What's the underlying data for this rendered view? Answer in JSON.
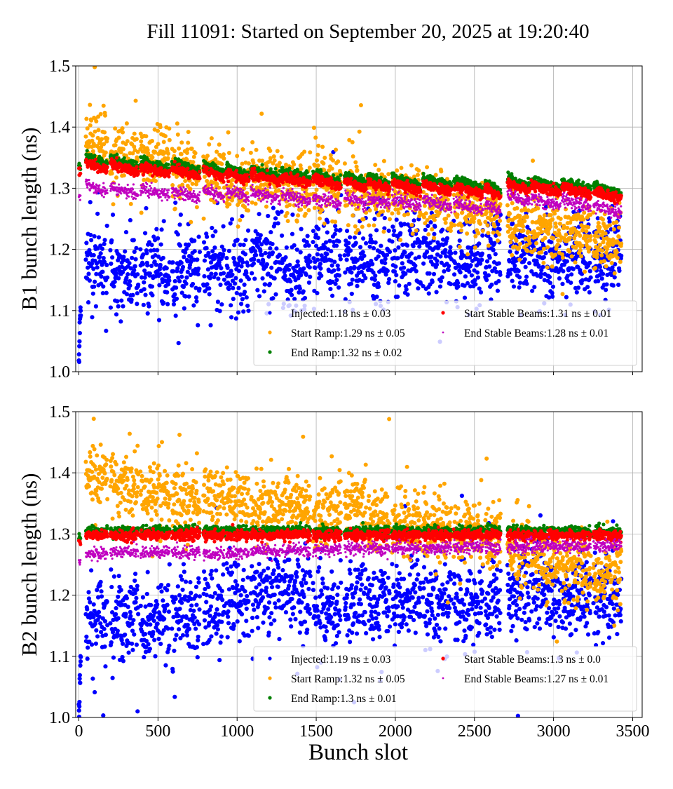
{
  "title": "Fill 11091: Started on September 20, 2025 at 19:20:40",
  "xlabel": "Bunch slot",
  "xticks": [
    0,
    500,
    1000,
    1500,
    2000,
    2500,
    3000,
    3500
  ],
  "yticks": [
    1.0,
    1.1,
    1.2,
    1.3,
    1.4,
    1.5
  ],
  "chart_data": [
    {
      "type": "scatter",
      "ylabel": "B1 bunch length (ns)",
      "xlim": [
        -20,
        3560
      ],
      "ylim": [
        1.0,
        1.5
      ],
      "grid": true,
      "legend_position": "lower-right",
      "trains": [
        [
          44,
          181
        ],
        [
          199,
          376
        ],
        [
          389,
          574
        ],
        [
          588,
          764
        ],
        [
          787,
          919
        ],
        [
          932,
          1074
        ],
        [
          1087,
          1273
        ],
        [
          1281,
          1463
        ],
        [
          1480,
          1657
        ],
        [
          1679,
          1816
        ],
        [
          1825,
          1966
        ],
        [
          1980,
          2161
        ],
        [
          2174,
          2355
        ],
        [
          2369,
          2554
        ],
        [
          2567,
          2665
        ],
        [
          2709,
          2850
        ],
        [
          2859,
          3045
        ],
        [
          3053,
          3235
        ],
        [
          3252,
          3429
        ]
      ],
      "pilot": {
        "slots": [
          0,
          12
        ],
        "injected_values": [
          1.02,
          1.11
        ]
      },
      "series": [
        {
          "name": "Injected",
          "legend": "Injected:1.18 ns ± 0.03",
          "color": "#0000ff",
          "spread": 0.035,
          "train_means": [
            1.18,
            1.165,
            1.165,
            1.165,
            1.175,
            1.165,
            1.19,
            1.16,
            1.19,
            1.18,
            1.18,
            1.19,
            1.19,
            1.18,
            1.185,
            1.19,
            1.18,
            1.185,
            1.19
          ]
        },
        {
          "name": "Start Ramp",
          "legend": "Start Ramp:1.29 ns ± 0.05",
          "color": "#ffa500",
          "spread": 0.025,
          "train_means": [
            1.38,
            1.355,
            1.35,
            1.33,
            1.32,
            1.31,
            1.315,
            1.3,
            1.31,
            1.3,
            1.29,
            1.29,
            1.28,
            1.27,
            1.26,
            1.24,
            1.235,
            1.225,
            1.215
          ]
        },
        {
          "name": "End Ramp",
          "legend": "End Ramp:1.32 ns ± 0.02",
          "color": "#008000",
          "spread": 0.004,
          "train_means": [
            1.345,
            1.342,
            1.338,
            1.335,
            1.332,
            1.328,
            1.326,
            1.322,
            1.318,
            1.315,
            1.313,
            1.311,
            1.309,
            1.306,
            1.302,
            1.31,
            1.307,
            1.304,
            1.298
          ]
        },
        {
          "name": "Start Stable Beams",
          "legend": "Start Stable Beams:1.31 ns ± 0.01",
          "color": "#ff0000",
          "spread": 0.004,
          "train_means": [
            1.336,
            1.333,
            1.329,
            1.326,
            1.323,
            1.319,
            1.317,
            1.313,
            1.309,
            1.306,
            1.304,
            1.302,
            1.3,
            1.297,
            1.293,
            1.301,
            1.298,
            1.295,
            1.289
          ]
        },
        {
          "name": "End Stable Beams",
          "legend": "End Stable Beams:1.28 ns ± 0.01",
          "color": "#c000c0",
          "spread": 0.005,
          "train_means": [
            1.3,
            1.296,
            1.293,
            1.29,
            1.292,
            1.29,
            1.288,
            1.283,
            1.28,
            1.28,
            1.279,
            1.277,
            1.276,
            1.27,
            1.268,
            1.283,
            1.278,
            1.275,
            1.266
          ]
        }
      ]
    },
    {
      "type": "scatter",
      "ylabel": "B2 bunch length (ns)",
      "xlabel": "Bunch slot",
      "xlim": [
        -20,
        3560
      ],
      "ylim": [
        1.0,
        1.5
      ],
      "grid": true,
      "legend_position": "lower-right",
      "trains": [
        [
          44,
          181
        ],
        [
          199,
          376
        ],
        [
          389,
          574
        ],
        [
          588,
          764
        ],
        [
          787,
          919
        ],
        [
          932,
          1074
        ],
        [
          1087,
          1273
        ],
        [
          1281,
          1463
        ],
        [
          1480,
          1657
        ],
        [
          1679,
          1816
        ],
        [
          1825,
          1966
        ],
        [
          1980,
          2161
        ],
        [
          2174,
          2355
        ],
        [
          2369,
          2554
        ],
        [
          2567,
          2665
        ],
        [
          2709,
          2850
        ],
        [
          2859,
          3045
        ],
        [
          3053,
          3235
        ],
        [
          3252,
          3429
        ]
      ],
      "pilot": {
        "slots": [
          0,
          12
        ],
        "injected_values": [
          1.01,
          1.1
        ]
      },
      "series": [
        {
          "name": "Injected",
          "legend": "Injected:1.19 ns ± 0.03",
          "color": "#0000ff",
          "spread": 0.035,
          "train_means": [
            1.16,
            1.165,
            1.16,
            1.165,
            1.18,
            1.195,
            1.2,
            1.2,
            1.18,
            1.185,
            1.19,
            1.2,
            1.19,
            1.19,
            1.2,
            1.2,
            1.2,
            1.2,
            1.195
          ]
        },
        {
          "name": "Start Ramp",
          "legend": "Start Ramp:1.32 ns ± 0.05",
          "color": "#ffa500",
          "spread": 0.025,
          "train_means": [
            1.395,
            1.38,
            1.365,
            1.355,
            1.36,
            1.355,
            1.345,
            1.345,
            1.335,
            1.35,
            1.32,
            1.315,
            1.31,
            1.305,
            1.29,
            1.27,
            1.255,
            1.24,
            1.235
          ]
        },
        {
          "name": "End Ramp",
          "legend": "End Ramp:1.3 ns ± 0.01",
          "color": "#008000",
          "spread": 0.004,
          "train_means": [
            1.305,
            1.305,
            1.305,
            1.305,
            1.305,
            1.305,
            1.305,
            1.305,
            1.305,
            1.305,
            1.305,
            1.305,
            1.305,
            1.305,
            1.305,
            1.305,
            1.305,
            1.305,
            1.305
          ]
        },
        {
          "name": "Start Stable Beams",
          "legend": "Start Stable Beams:1.3 ns ± 0.0",
          "color": "#ff0000",
          "spread": 0.004,
          "train_means": [
            1.298,
            1.298,
            1.298,
            1.298,
            1.298,
            1.298,
            1.298,
            1.298,
            1.298,
            1.298,
            1.298,
            1.298,
            1.298,
            1.298,
            1.298,
            1.298,
            1.298,
            1.298,
            1.298
          ]
        },
        {
          "name": "End Stable Beams",
          "legend": "End Stable Beams:1.27 ns ± 0.01",
          "color": "#c000c0",
          "spread": 0.005,
          "train_means": [
            1.268,
            1.27,
            1.27,
            1.27,
            1.268,
            1.27,
            1.272,
            1.274,
            1.274,
            1.276,
            1.276,
            1.277,
            1.277,
            1.278,
            1.278,
            1.279,
            1.28,
            1.28,
            1.28
          ]
        }
      ]
    }
  ]
}
